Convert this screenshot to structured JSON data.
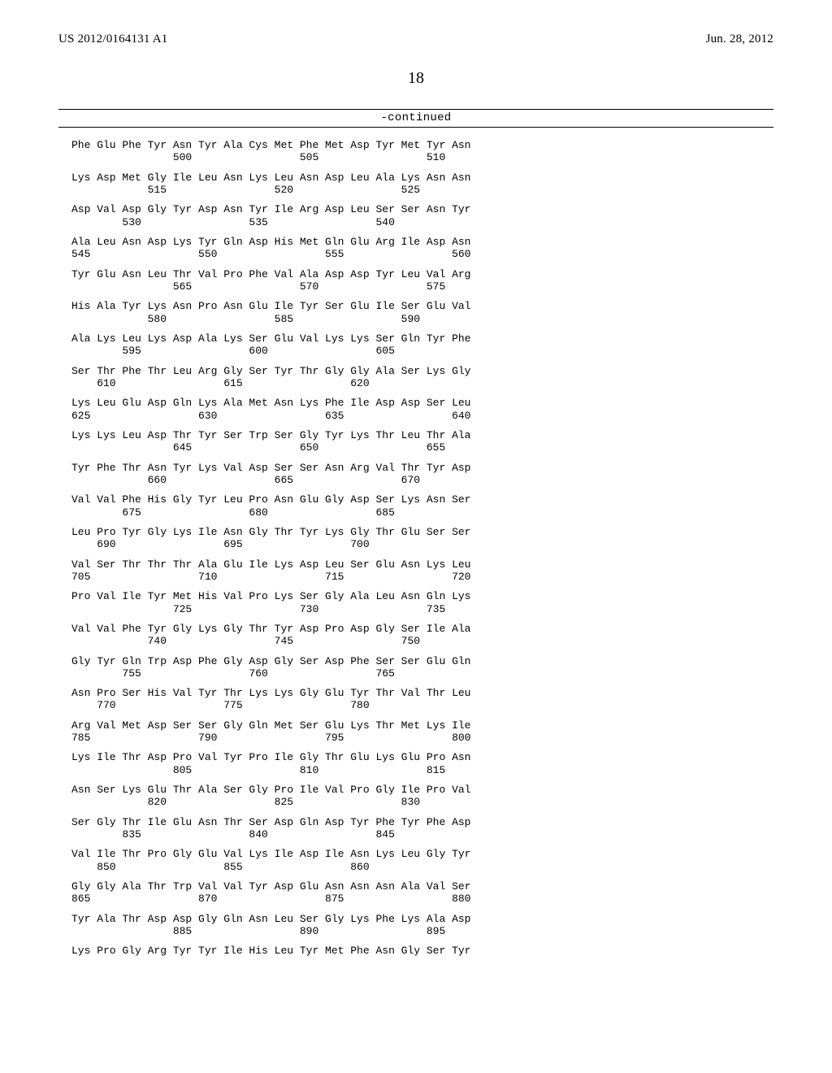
{
  "header": {
    "publication_number": "US 2012/0164131 A1",
    "publication_date": "Jun. 28, 2012"
  },
  "page_number": "18",
  "continued_label": "-continued",
  "sequence": {
    "residues_per_line": 16,
    "font_family_seq": "Courier New",
    "font_size_seq_pt": 10,
    "font_family_header": "Times New Roman",
    "font_size_header_pt": 11,
    "font_size_pagenum_pt": 15,
    "text_color": "#000000",
    "background_color": "#ffffff",
    "rule_color": "#000000",
    "blocks": [
      {
        "aa": "Phe Glu Phe Tyr Asn Tyr Ala Cys Met Phe Met Asp Tyr Met Tyr Asn",
        "nums": "                500                 505                 510"
      },
      {
        "aa": "Lys Asp Met Gly Ile Leu Asn Lys Leu Asn Asp Leu Ala Lys Asn Asn",
        "nums": "            515                 520                 525"
      },
      {
        "aa": "Asp Val Asp Gly Tyr Asp Asn Tyr Ile Arg Asp Leu Ser Ser Asn Tyr",
        "nums": "        530                 535                 540"
      },
      {
        "aa": "Ala Leu Asn Asp Lys Tyr Gln Asp His Met Gln Glu Arg Ile Asp Asn",
        "nums": "545                 550                 555                 560"
      },
      {
        "aa": "Tyr Glu Asn Leu Thr Val Pro Phe Val Ala Asp Asp Tyr Leu Val Arg",
        "nums": "                565                 570                 575"
      },
      {
        "aa": "His Ala Tyr Lys Asn Pro Asn Glu Ile Tyr Ser Glu Ile Ser Glu Val",
        "nums": "            580                 585                 590"
      },
      {
        "aa": "Ala Lys Leu Lys Asp Ala Lys Ser Glu Val Lys Lys Ser Gln Tyr Phe",
        "nums": "        595                 600                 605"
      },
      {
        "aa": "Ser Thr Phe Thr Leu Arg Gly Ser Tyr Thr Gly Gly Ala Ser Lys Gly",
        "nums": "    610                 615                 620"
      },
      {
        "aa": "Lys Leu Glu Asp Gln Lys Ala Met Asn Lys Phe Ile Asp Asp Ser Leu",
        "nums": "625                 630                 635                 640"
      },
      {
        "aa": "Lys Lys Leu Asp Thr Tyr Ser Trp Ser Gly Tyr Lys Thr Leu Thr Ala",
        "nums": "                645                 650                 655"
      },
      {
        "aa": "Tyr Phe Thr Asn Tyr Lys Val Asp Ser Ser Asn Arg Val Thr Tyr Asp",
        "nums": "            660                 665                 670"
      },
      {
        "aa": "Val Val Phe His Gly Tyr Leu Pro Asn Glu Gly Asp Ser Lys Asn Ser",
        "nums": "        675                 680                 685"
      },
      {
        "aa": "Leu Pro Tyr Gly Lys Ile Asn Gly Thr Tyr Lys Gly Thr Glu Ser Ser",
        "nums": "    690                 695                 700"
      },
      {
        "aa": "Val Ser Thr Thr Thr Ala Glu Ile Lys Asp Leu Ser Glu Asn Lys Leu",
        "nums": "705                 710                 715                 720"
      },
      {
        "aa": "Pro Val Ile Tyr Met His Val Pro Lys Ser Gly Ala Leu Asn Gln Lys",
        "nums": "                725                 730                 735"
      },
      {
        "aa": "Val Val Phe Tyr Gly Lys Gly Thr Tyr Asp Pro Asp Gly Ser Ile Ala",
        "nums": "            740                 745                 750"
      },
      {
        "aa": "Gly Tyr Gln Trp Asp Phe Gly Asp Gly Ser Asp Phe Ser Ser Glu Gln",
        "nums": "        755                 760                 765"
      },
      {
        "aa": "Asn Pro Ser His Val Tyr Thr Lys Lys Gly Glu Tyr Thr Val Thr Leu",
        "nums": "    770                 775                 780"
      },
      {
        "aa": "Arg Val Met Asp Ser Ser Gly Gln Met Ser Glu Lys Thr Met Lys Ile",
        "nums": "785                 790                 795                 800"
      },
      {
        "aa": "Lys Ile Thr Asp Pro Val Tyr Pro Ile Gly Thr Glu Lys Glu Pro Asn",
        "nums": "                805                 810                 815"
      },
      {
        "aa": "Asn Ser Lys Glu Thr Ala Ser Gly Pro Ile Val Pro Gly Ile Pro Val",
        "nums": "            820                 825                 830"
      },
      {
        "aa": "Ser Gly Thr Ile Glu Asn Thr Ser Asp Gln Asp Tyr Phe Tyr Phe Asp",
        "nums": "        835                 840                 845"
      },
      {
        "aa": "Val Ile Thr Pro Gly Glu Val Lys Ile Asp Ile Asn Lys Leu Gly Tyr",
        "nums": "    850                 855                 860"
      },
      {
        "aa": "Gly Gly Ala Thr Trp Val Val Tyr Asp Glu Asn Asn Asn Ala Val Ser",
        "nums": "865                 870                 875                 880"
      },
      {
        "aa": "Tyr Ala Thr Asp Asp Gly Gln Asn Leu Ser Gly Lys Phe Lys Ala Asp",
        "nums": "                885                 890                 895"
      },
      {
        "aa": "Lys Pro Gly Arg Tyr Tyr Ile His Leu Tyr Met Phe Asn Gly Ser Tyr",
        "nums": ""
      }
    ]
  }
}
